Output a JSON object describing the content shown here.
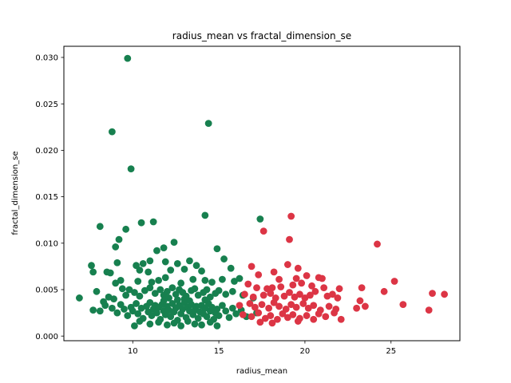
{
  "chart_data": {
    "type": "scatter",
    "title": "radius_mean vs fractal_dimension_se",
    "xlabel": "radius_mean",
    "ylabel": "fractal_dimension_se",
    "xlim": [
      6.0,
      29.0
    ],
    "ylim": [
      -0.0005,
      0.0312
    ],
    "xticks": [
      10,
      15,
      20,
      25
    ],
    "xtick_labels": [
      "10",
      "15",
      "20",
      "25"
    ],
    "yticks": [
      0.0,
      0.005,
      0.01,
      0.015,
      0.02,
      0.025,
      0.03
    ],
    "ytick_labels": [
      "0.000",
      "0.005",
      "0.010",
      "0.015",
      "0.020",
      "0.025",
      "0.030"
    ],
    "grid": false,
    "legend": "none",
    "series": [
      {
        "color": "#17804f",
        "points": [
          [
            9.7,
            0.0299
          ],
          [
            8.8,
            0.022
          ],
          [
            14.4,
            0.0229
          ],
          [
            9.9,
            0.018
          ],
          [
            8.1,
            0.0118
          ],
          [
            9.6,
            0.0115
          ],
          [
            10.5,
            0.0122
          ],
          [
            11.2,
            0.0123
          ],
          [
            14.2,
            0.013
          ],
          [
            17.4,
            0.0126
          ],
          [
            9.2,
            0.0104
          ],
          [
            9.0,
            0.0096
          ],
          [
            12.4,
            0.0101
          ],
          [
            14.9,
            0.0094
          ],
          [
            11.8,
            0.0095
          ],
          [
            11.4,
            0.0092
          ],
          [
            10.2,
            0.0076
          ],
          [
            10.6,
            0.0078
          ],
          [
            11.0,
            0.0081
          ],
          [
            11.9,
            0.008
          ],
          [
            12.6,
            0.0078
          ],
          [
            13.3,
            0.0081
          ],
          [
            13.7,
            0.0076
          ],
          [
            15.3,
            0.0083
          ],
          [
            9.1,
            0.0079
          ],
          [
            7.6,
            0.0076
          ],
          [
            7.7,
            0.0069
          ],
          [
            8.5,
            0.0069
          ],
          [
            8.7,
            0.0068
          ],
          [
            10.4,
            0.0071
          ],
          [
            10.9,
            0.0069
          ],
          [
            12.2,
            0.0071
          ],
          [
            13.0,
            0.0072
          ],
          [
            14.0,
            0.007
          ],
          [
            15.7,
            0.0073
          ],
          [
            9.0,
            0.0057
          ],
          [
            9.3,
            0.006
          ],
          [
            10.3,
            0.0059
          ],
          [
            11.1,
            0.0058
          ],
          [
            11.5,
            0.006
          ],
          [
            11.9,
            0.0063
          ],
          [
            12.8,
            0.0057
          ],
          [
            13.5,
            0.0061
          ],
          [
            14.2,
            0.006
          ],
          [
            14.6,
            0.0058
          ],
          [
            15.2,
            0.0061
          ],
          [
            15.9,
            0.0059
          ],
          [
            16.2,
            0.0062
          ],
          [
            6.9,
            0.0041
          ],
          [
            7.9,
            0.0048
          ],
          [
            8.3,
            0.0037
          ],
          [
            8.6,
            0.0042
          ],
          [
            8.9,
            0.004
          ],
          [
            9.4,
            0.0051
          ],
          [
            9.6,
            0.0044
          ],
          [
            9.8,
            0.005
          ],
          [
            10.1,
            0.0047
          ],
          [
            10.4,
            0.0043
          ],
          [
            10.7,
            0.0049
          ],
          [
            11.0,
            0.0052
          ],
          [
            11.3,
            0.0046
          ],
          [
            11.6,
            0.005
          ],
          [
            11.8,
            0.0044
          ],
          [
            12.0,
            0.0048
          ],
          [
            12.3,
            0.0052
          ],
          [
            12.5,
            0.0045
          ],
          [
            12.7,
            0.005
          ],
          [
            12.9,
            0.0047
          ],
          [
            13.1,
            0.0043
          ],
          [
            13.4,
            0.0049
          ],
          [
            13.6,
            0.0051
          ],
          [
            13.8,
            0.0044
          ],
          [
            14.1,
            0.0047
          ],
          [
            14.3,
            0.005
          ],
          [
            14.5,
            0.0042
          ],
          [
            14.8,
            0.0046
          ],
          [
            15.0,
            0.0049
          ],
          [
            15.4,
            0.0045
          ],
          [
            15.8,
            0.0048
          ],
          [
            16.4,
            0.0044
          ],
          [
            17.0,
            0.0041
          ],
          [
            7.7,
            0.0028
          ],
          [
            8.1,
            0.0027
          ],
          [
            8.4,
            0.0033
          ],
          [
            8.8,
            0.003
          ],
          [
            9.1,
            0.0025
          ],
          [
            9.3,
            0.0034
          ],
          [
            9.5,
            0.0029
          ],
          [
            9.7,
            0.0022
          ],
          [
            9.9,
            0.0031
          ],
          [
            10.0,
            0.0027
          ],
          [
            10.2,
            0.0035
          ],
          [
            10.3,
            0.0024
          ],
          [
            10.5,
            0.003
          ],
          [
            10.6,
            0.0019
          ],
          [
            10.8,
            0.0032
          ],
          [
            10.9,
            0.0026
          ],
          [
            11.0,
            0.0036
          ],
          [
            11.1,
            0.0022
          ],
          [
            11.2,
            0.0029
          ],
          [
            11.3,
            0.0033
          ],
          [
            11.4,
            0.0025
          ],
          [
            11.5,
            0.0031
          ],
          [
            11.6,
            0.0018
          ],
          [
            11.7,
            0.0034
          ],
          [
            11.8,
            0.0027
          ],
          [
            11.9,
            0.0023
          ],
          [
            12.0,
            0.0032
          ],
          [
            12.1,
            0.0028
          ],
          [
            12.2,
            0.0021
          ],
          [
            12.3,
            0.0035
          ],
          [
            12.4,
            0.0026
          ],
          [
            12.5,
            0.003
          ],
          [
            12.6,
            0.0017
          ],
          [
            12.7,
            0.0033
          ],
          [
            12.8,
            0.0024
          ],
          [
            12.9,
            0.0029
          ],
          [
            13.0,
            0.0036
          ],
          [
            13.1,
            0.002
          ],
          [
            13.2,
            0.0031
          ],
          [
            13.3,
            0.0027
          ],
          [
            13.4,
            0.0034
          ],
          [
            13.5,
            0.0023
          ],
          [
            13.6,
            0.0028
          ],
          [
            13.7,
            0.0032
          ],
          [
            13.8,
            0.0019
          ],
          [
            13.9,
            0.0026
          ],
          [
            14.0,
            0.0033
          ],
          [
            14.1,
            0.0024
          ],
          [
            14.2,
            0.003
          ],
          [
            14.3,
            0.0021
          ],
          [
            14.4,
            0.0035
          ],
          [
            14.5,
            0.0027
          ],
          [
            14.6,
            0.0031
          ],
          [
            14.7,
            0.0018
          ],
          [
            14.8,
            0.0025
          ],
          [
            14.9,
            0.0029
          ],
          [
            15.0,
            0.0022
          ],
          [
            15.2,
            0.0033
          ],
          [
            15.4,
            0.0027
          ],
          [
            15.6,
            0.002
          ],
          [
            15.8,
            0.003
          ],
          [
            16.0,
            0.0024
          ],
          [
            16.3,
            0.0028
          ],
          [
            16.6,
            0.0021
          ],
          [
            17.2,
            0.0025
          ],
          [
            10.1,
            0.0011
          ],
          [
            10.4,
            0.0016
          ],
          [
            11.0,
            0.0013
          ],
          [
            11.5,
            0.0015
          ],
          [
            12.0,
            0.0012
          ],
          [
            12.4,
            0.0014
          ],
          [
            12.8,
            0.0011
          ],
          [
            13.2,
            0.0016
          ],
          [
            13.6,
            0.0013
          ],
          [
            14.0,
            0.0012
          ],
          [
            14.5,
            0.0015
          ],
          [
            14.9,
            0.0011
          ],
          [
            11.8,
            0.0038
          ],
          [
            12.6,
            0.0039
          ],
          [
            13.3,
            0.0038
          ],
          [
            12.1,
            0.0041
          ],
          [
            13.0,
            0.004
          ],
          [
            14.2,
            0.0039
          ]
        ]
      },
      {
        "color": "#dc3545",
        "points": [
          [
            19.2,
            0.0129
          ],
          [
            17.6,
            0.0113
          ],
          [
            19.1,
            0.0104
          ],
          [
            24.2,
            0.0099
          ],
          [
            16.9,
            0.0075
          ],
          [
            19.0,
            0.0077
          ],
          [
            19.6,
            0.0073
          ],
          [
            17.3,
            0.0066
          ],
          [
            18.2,
            0.0069
          ],
          [
            20.1,
            0.0065
          ],
          [
            20.8,
            0.0063
          ],
          [
            21.0,
            0.0062
          ],
          [
            19.5,
            0.0062
          ],
          [
            25.2,
            0.0059
          ],
          [
            18.5,
            0.0061
          ],
          [
            16.7,
            0.0056
          ],
          [
            17.2,
            0.0052
          ],
          [
            17.8,
            0.0051
          ],
          [
            18.1,
            0.0052
          ],
          [
            18.6,
            0.0053
          ],
          [
            19.3,
            0.0055
          ],
          [
            19.8,
            0.0057
          ],
          [
            20.4,
            0.0054
          ],
          [
            21.1,
            0.0052
          ],
          [
            22.0,
            0.0051
          ],
          [
            23.3,
            0.0052
          ],
          [
            24.6,
            0.0048
          ],
          [
            27.4,
            0.0046
          ],
          [
            28.1,
            0.0045
          ],
          [
            16.5,
            0.0045
          ],
          [
            17.0,
            0.0042
          ],
          [
            17.6,
            0.0044
          ],
          [
            18.0,
            0.0046
          ],
          [
            18.3,
            0.0041
          ],
          [
            18.8,
            0.0043
          ],
          [
            19.1,
            0.0047
          ],
          [
            19.4,
            0.0042
          ],
          [
            19.7,
            0.0045
          ],
          [
            20.0,
            0.0041
          ],
          [
            20.3,
            0.0044
          ],
          [
            20.6,
            0.0048
          ],
          [
            21.3,
            0.0043
          ],
          [
            21.6,
            0.0045
          ],
          [
            21.9,
            0.0041
          ],
          [
            23.2,
            0.0038
          ],
          [
            16.2,
            0.0033
          ],
          [
            16.8,
            0.0035
          ],
          [
            17.1,
            0.0031
          ],
          [
            17.5,
            0.0034
          ],
          [
            17.9,
            0.003
          ],
          [
            18.2,
            0.0036
          ],
          [
            18.5,
            0.0032
          ],
          [
            18.9,
            0.0029
          ],
          [
            19.2,
            0.0034
          ],
          [
            19.5,
            0.0031
          ],
          [
            19.9,
            0.0035
          ],
          [
            20.2,
            0.003
          ],
          [
            20.5,
            0.0033
          ],
          [
            20.9,
            0.0028
          ],
          [
            21.4,
            0.0032
          ],
          [
            21.8,
            0.0029
          ],
          [
            23.0,
            0.003
          ],
          [
            23.5,
            0.0032
          ],
          [
            25.7,
            0.0034
          ],
          [
            27.2,
            0.0028
          ],
          [
            16.4,
            0.0023
          ],
          [
            16.9,
            0.0021
          ],
          [
            17.3,
            0.0025
          ],
          [
            17.7,
            0.0019
          ],
          [
            18.0,
            0.0022
          ],
          [
            18.4,
            0.0018
          ],
          [
            18.7,
            0.0024
          ],
          [
            19.0,
            0.002
          ],
          [
            19.3,
            0.0023
          ],
          [
            19.7,
            0.0019
          ],
          [
            20.1,
            0.0022
          ],
          [
            20.5,
            0.0018
          ],
          [
            20.8,
            0.0024
          ],
          [
            21.2,
            0.0021
          ],
          [
            21.7,
            0.0025
          ],
          [
            22.1,
            0.0018
          ],
          [
            17.4,
            0.0015
          ],
          [
            18.1,
            0.0014
          ],
          [
            19.6,
            0.0016
          ]
        ]
      }
    ]
  }
}
